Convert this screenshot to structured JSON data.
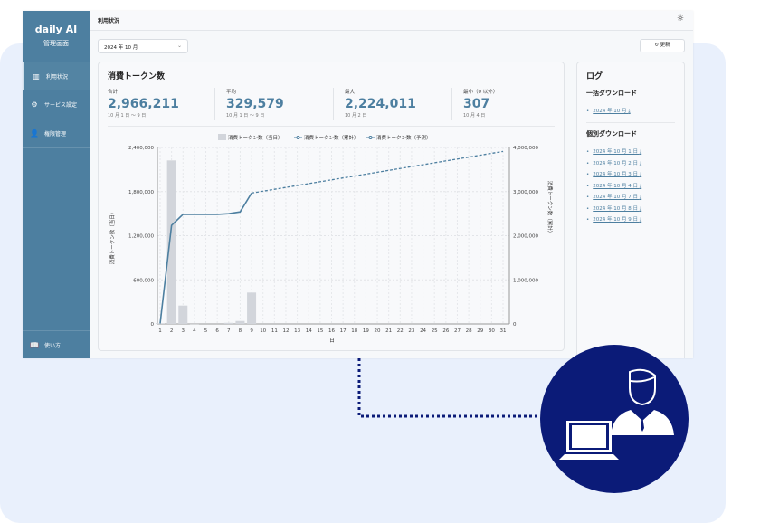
{
  "sidebar": {
    "logo": "daily AI",
    "subtitle": "管理画面",
    "items": [
      {
        "label": "利用状況",
        "icon": "bar-chart-icon"
      },
      {
        "label": "サービス設定",
        "icon": "gear-icon"
      },
      {
        "label": "権限管理",
        "icon": "user-admin-icon"
      }
    ],
    "help": {
      "label": "使い方",
      "icon": "book-icon"
    }
  },
  "header": {
    "title": "利用状況",
    "theme_icon": "sun-icon"
  },
  "toolbar": {
    "month_select": "2024 年 10 月",
    "refresh_label": "更新"
  },
  "usage": {
    "title": "消費トークン数",
    "stats": [
      {
        "label": "合計",
        "value": "2,966,211",
        "sub": "10 月 1 日 〜 9 日"
      },
      {
        "label": "平均",
        "value": "329,579",
        "sub": "10 月 1 日 〜 9 日"
      },
      {
        "label": "最大",
        "value": "2,224,011",
        "sub": "10 月 2 日"
      },
      {
        "label": "最小（0 以外）",
        "value": "307",
        "sub": "10 月 4 日"
      }
    ]
  },
  "log": {
    "title": "ログ",
    "bulk_title": "一括ダウンロード",
    "bulk": [
      "2024 年 10 月"
    ],
    "each_title": "個別ダウンロード",
    "each": [
      "2024 年 10 月 1 日",
      "2024 年 10 月 2 日",
      "2024 年 10 月 3 日",
      "2024 年 10 月 4 日",
      "2024 年 10 月 7 日",
      "2024 年 10 月 8 日",
      "2024 年 10 月 9 日"
    ]
  },
  "colors": {
    "sidebar": "#4d7fa0",
    "accent": "#4d7fa0",
    "bar": "#d2d5db",
    "badge": "#0b1b78"
  },
  "chart_data": {
    "type": "bar+line",
    "legend": [
      "消費トークン数（当日）",
      "消費トークン数（累計）",
      "消費トークン数（予測）"
    ],
    "xlabel": "日",
    "ylabel_left": "消費トークン数（当日）",
    "ylabel_right": "消費トークン数（累計）",
    "x": [
      1,
      2,
      3,
      4,
      5,
      6,
      7,
      8,
      9,
      10,
      11,
      12,
      13,
      14,
      15,
      16,
      17,
      18,
      19,
      20,
      21,
      22,
      23,
      24,
      25,
      26,
      27,
      28,
      29,
      30,
      31
    ],
    "ylim_left": [
      0,
      2400000
    ],
    "yticks_left": [
      "0",
      "600,000",
      "1,200,000",
      "1,800,000",
      "2,400,000"
    ],
    "ylim_right": [
      0,
      4000000
    ],
    "yticks_right": [
      "0",
      "1,000,000",
      "2,000,000",
      "3,000,000",
      "4,000,000"
    ],
    "daily": [
      10000,
      2224011,
      250000,
      307,
      0,
      0,
      15000,
      40000,
      426893
    ],
    "cumulative": [
      10000,
      2234011,
      2484011,
      2484318,
      2484318,
      2484318,
      2499318,
      2539318,
      2966211
    ],
    "forecast": {
      "x": [
        9,
        31
      ],
      "y": [
        2966211,
        3910000
      ]
    }
  }
}
